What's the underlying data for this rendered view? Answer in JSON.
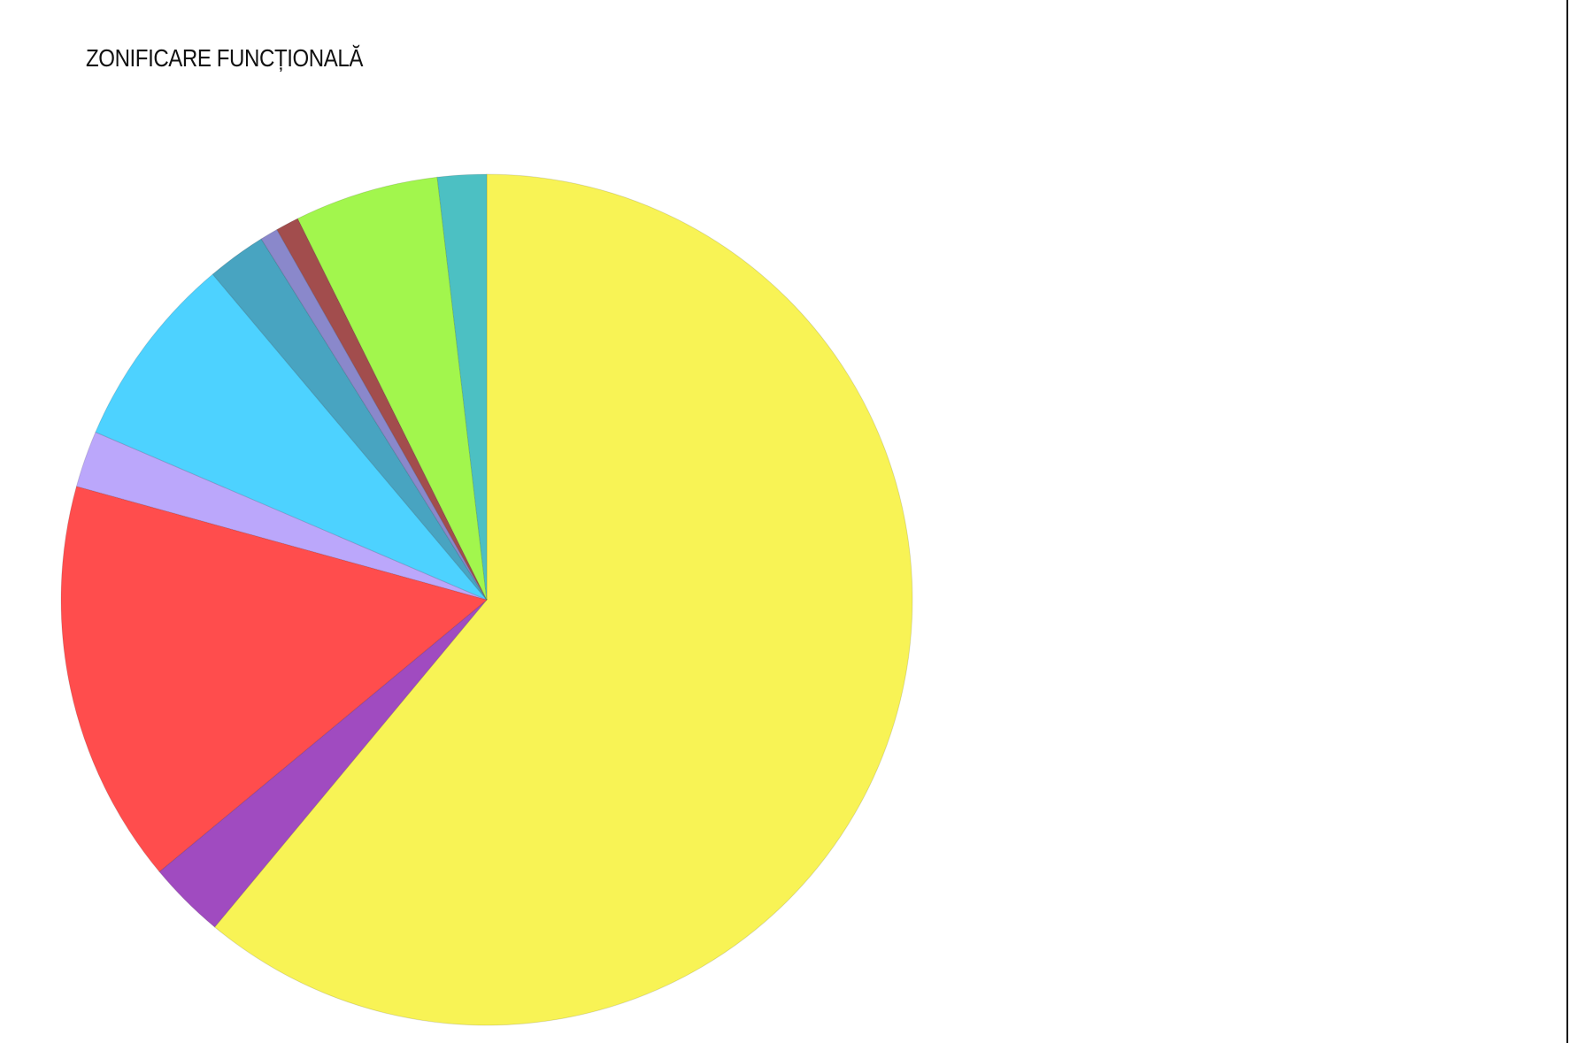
{
  "chart_data": {
    "type": "pie",
    "title": "ZONIFICARE FUNCȚIONALĂ",
    "start": "top",
    "direction": "clockwise",
    "legend": "none",
    "slices": [
      {
        "value": 62.5,
        "color": "#F8F355"
      },
      {
        "value": 3.0,
        "color": "#A04BC0"
      },
      {
        "value": 15.7,
        "color": "#FF4D4D"
      },
      {
        "value": 2.2,
        "color": "#BBA7FB"
      },
      {
        "value": 7.6,
        "color": "#4DD2FF"
      },
      {
        "value": 2.3,
        "color": "#48A4C1"
      },
      {
        "value": 0.7,
        "color": "#8A88CB"
      },
      {
        "value": 0.9,
        "color": "#A24D4D"
      },
      {
        "value": 5.6,
        "color": "#A2F64D"
      },
      {
        "value": 1.9,
        "color": "#4CC0C3"
      }
    ]
  }
}
